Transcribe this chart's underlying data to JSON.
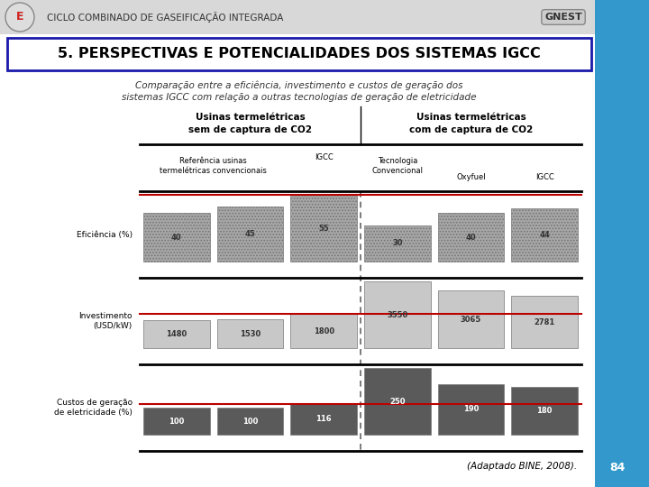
{
  "slide_title": "CICLO COMBINADO DE GASEIFICAÇÃO INTEGRADA",
  "section_title": "5. PERSPECTIVAS E POTENCIALIDADES DOS SISTEMAS IGCC",
  "subtitle_line1": "Comparação entre a eficiência, investimento e custos de geração dos",
  "subtitle_line2": "sistemas IGCC com relação a outras tecnologias de geração de eletricidade",
  "caption": "(Adaptado BINE, 2008).",
  "page_number": "84",
  "col_header1": "Usinas termelétricas\nsem de captura de CO2",
  "col_header2": "Usinas termelétricas\ncom de captura de CO2",
  "group_header1": "Referência usinas\ntermelétricas convencionais",
  "group_header2_left": "IGCC",
  "group_header3": "Tecnologia\nConvencional",
  "group_header4": "Oxyfuel",
  "group_header5_right": "IGCC",
  "charts": [
    {
      "label": "Eficiência (%)",
      "values": [
        40,
        45,
        55,
        30,
        40,
        44
      ],
      "max_val": 55,
      "ref_val": 55,
      "bar_color": "#aaaaaa",
      "hatch": ".....",
      "text_color": "#333333"
    },
    {
      "label": "Investimento\n(USD/kW)",
      "values": [
        1480,
        1530,
        1800,
        3550,
        3065,
        2781
      ],
      "max_val": 3550,
      "ref_val": 1800,
      "bar_color": "#c8c8c8",
      "hatch": "",
      "text_color": "#333333"
    },
    {
      "label": "Custos de geração\nde eletricidade (%)",
      "values": [
        100,
        100,
        116,
        250,
        190,
        180
      ],
      "max_val": 250,
      "ref_val": 116,
      "bar_color": "#5a5a5a",
      "hatch": "",
      "text_color": "#ffffff"
    }
  ],
  "bg_color": "#f0f0f0",
  "white_bg": "#ffffff",
  "cyan_stripe": "#3399cc",
  "red_line_color": "#bb0000",
  "dashed_line_color": "#666666",
  "border_color": "#000000",
  "title_box_border": "#1a1aaa"
}
